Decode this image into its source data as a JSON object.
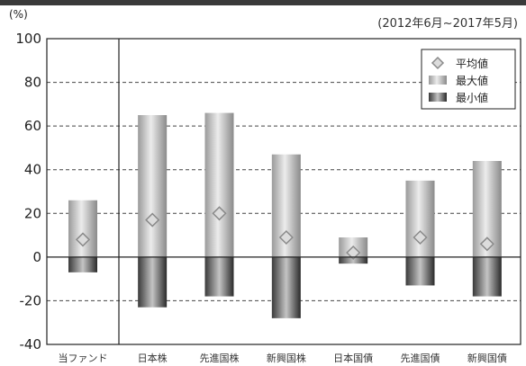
{
  "chart_data": {
    "type": "bar",
    "y_unit": "(%)",
    "period": "(2012年6月~2017年5月)",
    "ylim": [
      -40,
      100
    ],
    "yticks": [
      100,
      80,
      60,
      40,
      20,
      0,
      -20,
      -40
    ],
    "grid": true,
    "legend_position": "top-right",
    "categories": [
      "当ファンド",
      "日本株",
      "先進国株",
      "新興国株",
      "日本国債",
      "先進国債",
      "新興国債"
    ],
    "series": [
      {
        "name": "平均値",
        "values": [
          8,
          17,
          20,
          9,
          2,
          9,
          6
        ]
      },
      {
        "name": "最大値",
        "values": [
          26,
          65,
          66,
          47,
          9,
          35,
          44
        ]
      },
      {
        "name": "最小値",
        "values": [
          -7,
          -23,
          -18,
          -28,
          -3,
          -13,
          -18
        ]
      }
    ],
    "colors": {
      "max_bar_light": "#e4e4e4",
      "max_bar_dark": "#8c8c8c",
      "min_bar_light": "#bdbdbd",
      "min_bar_dark": "#2f2f2f",
      "marker_fill": "#dcdcdc",
      "marker_stroke": "#8a8a8a"
    }
  }
}
